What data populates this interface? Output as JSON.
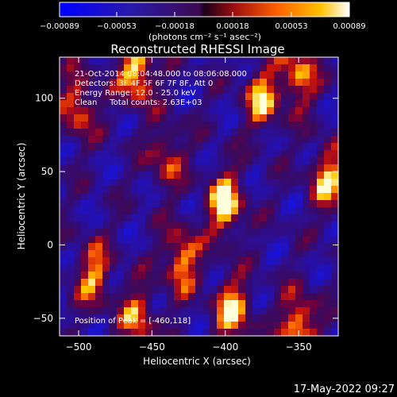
{
  "chart_data": {
    "type": "heatmap",
    "title": "Reconstructed RHESSI Image",
    "xlabel": "Heliocentric X (arcsec)",
    "ylabel": "Heliocentric Y (arcsec)",
    "xlim": [
      -513,
      -323
    ],
    "ylim": [
      -62,
      128
    ],
    "x_ticks": [
      -500,
      -450,
      -400,
      -350
    ],
    "x_tick_labels": [
      "−500",
      "−450",
      "−400",
      "−350"
    ],
    "y_ticks": [
      -50,
      0,
      50,
      100
    ],
    "y_tick_labels": [
      "−50",
      "0",
      "50",
      "100"
    ],
    "colorbar": {
      "range": [
        -0.00089,
        0.00089
      ],
      "tick_labels": [
        "−0.00089",
        "−0.00053",
        "−0.00018",
        "0.00018",
        "0.00053",
        "0.00089"
      ],
      "unit_text": "(photons cm⁻² s⁻¹ asec⁻²)"
    },
    "annotations": [
      "21-Oct-2014 08:04:48.000 to 08:06:08.000",
      "Detectors: 3F 4F 5F 6F 7F 8F, Att 0",
      "Energy Range: 12.0 - 25.0 keV",
      "Clean     Total counts: 2.63E+03"
    ],
    "peak_label": "Position of Peak = [-460,118]",
    "peaks": [
      {
        "x": -460,
        "y": 118,
        "v": 1.0
      },
      {
        "x": -400,
        "y": 28,
        "v": 1.0
      },
      {
        "x": -350,
        "y": -55,
        "v": 0.95
      },
      {
        "x": -395,
        "y": -45,
        "v": 0.9
      },
      {
        "x": -430,
        "y": -10,
        "v": 0.85
      },
      {
        "x": -330,
        "y": 45,
        "v": 0.85
      },
      {
        "x": -375,
        "y": 100,
        "v": 0.8
      },
      {
        "x": -490,
        "y": -20,
        "v": 0.75
      },
      {
        "x": -500,
        "y": 95,
        "v": 0.75
      },
      {
        "x": -440,
        "y": 60,
        "v": 0.6
      },
      {
        "x": -460,
        "y": -50,
        "v": 0.7
      },
      {
        "x": -350,
        "y": 115,
        "v": 0.8
      }
    ]
  },
  "footer": {
    "timestamp": "17-May-2022 09:27"
  }
}
